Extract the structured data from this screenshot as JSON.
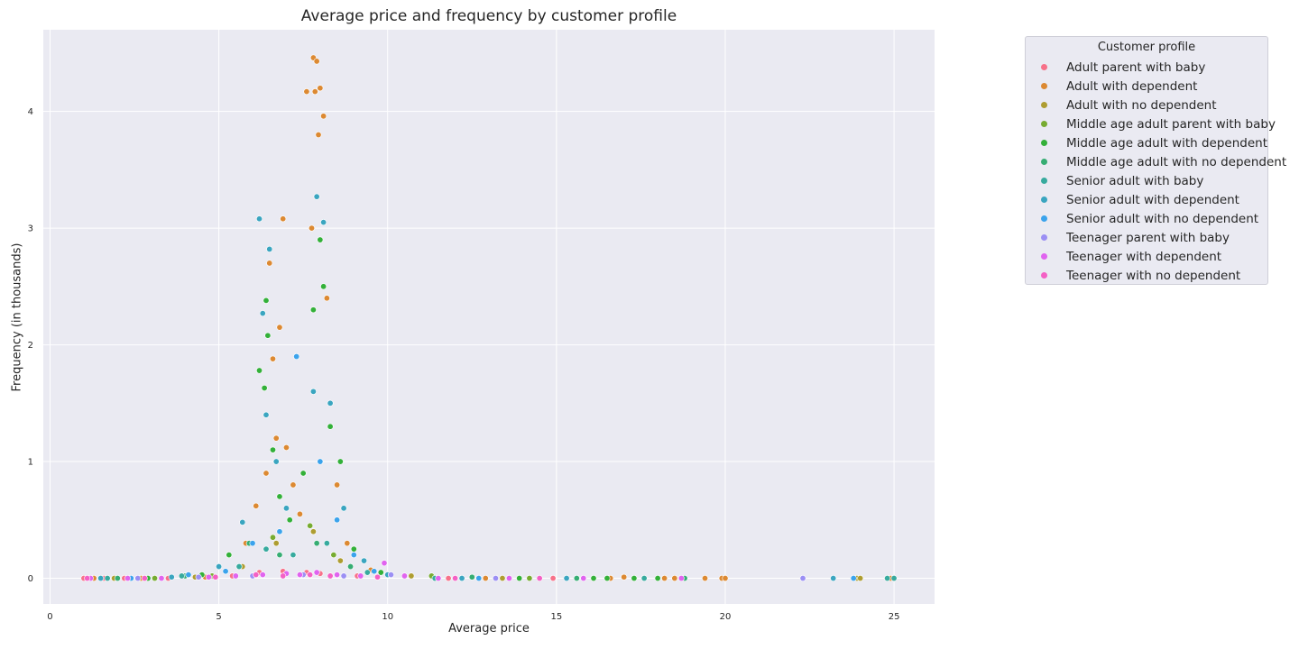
{
  "chart_data": {
    "type": "scatter",
    "title": "Average price and frequency by customer profile",
    "xlabel": "Average price",
    "ylabel": "Frequency (in thousands)",
    "xlim": [
      -0.2,
      26.2
    ],
    "ylim": [
      -0.22,
      4.7
    ],
    "xticks": [
      0,
      5,
      10,
      15,
      20,
      25
    ],
    "yticks": [
      0,
      1,
      2,
      3,
      4
    ],
    "grid": true,
    "background": "#eaeaf2",
    "legend": {
      "title": "Customer profile",
      "placement": "outside-right-top"
    },
    "series": [
      {
        "name": "Adult parent with baby",
        "color": "#f77189",
        "points": [
          [
            1.0,
            0
          ],
          [
            1.6,
            0
          ],
          [
            2.2,
            0
          ],
          [
            3.5,
            0
          ],
          [
            5.4,
            0.02
          ],
          [
            6.2,
            0.05
          ],
          [
            6.9,
            0.06
          ],
          [
            7.6,
            0.05
          ],
          [
            8.0,
            0.04
          ],
          [
            9.1,
            0.02
          ],
          [
            11.8,
            0
          ],
          [
            14.9,
            0
          ]
        ]
      },
      {
        "name": "Adult with dependent",
        "color": "#dc8932",
        "points": [
          [
            1.3,
            0
          ],
          [
            2.7,
            0
          ],
          [
            4.6,
            0.01
          ],
          [
            5.8,
            0.3
          ],
          [
            6.1,
            0.62
          ],
          [
            6.4,
            0.9
          ],
          [
            6.5,
            2.7
          ],
          [
            6.6,
            1.88
          ],
          [
            6.7,
            1.2
          ],
          [
            6.8,
            2.15
          ],
          [
            6.9,
            3.08
          ],
          [
            7.0,
            1.12
          ],
          [
            7.2,
            0.8
          ],
          [
            7.4,
            0.55
          ],
          [
            7.6,
            4.17
          ],
          [
            7.75,
            3.0
          ],
          [
            7.8,
            4.46
          ],
          [
            7.85,
            4.17
          ],
          [
            7.9,
            4.43
          ],
          [
            7.95,
            3.8
          ],
          [
            8.0,
            4.2
          ],
          [
            8.1,
            3.96
          ],
          [
            8.2,
            2.4
          ],
          [
            8.3,
            1.5
          ],
          [
            8.5,
            0.8
          ],
          [
            8.8,
            0.3
          ],
          [
            9.5,
            0.07
          ],
          [
            12.9,
            0
          ],
          [
            16.6,
            0
          ],
          [
            17.0,
            0.01
          ],
          [
            18.2,
            0
          ],
          [
            18.5,
            0
          ],
          [
            19.4,
            0
          ],
          [
            19.9,
            0
          ],
          [
            20.0,
            0
          ],
          [
            24.9,
            0
          ]
        ]
      },
      {
        "name": "Adult with no dependent",
        "color": "#ae9d31",
        "points": [
          [
            1.9,
            0
          ],
          [
            4.3,
            0.01
          ],
          [
            5.7,
            0.1
          ],
          [
            6.7,
            0.3
          ],
          [
            7.8,
            0.4
          ],
          [
            8.6,
            0.15
          ],
          [
            10.7,
            0.02
          ],
          [
            13.4,
            0
          ],
          [
            23.9,
            0
          ],
          [
            24.0,
            0
          ]
        ]
      },
      {
        "name": "Middle age adult parent with baby",
        "color": "#77ab31",
        "points": [
          [
            3.1,
            0
          ],
          [
            4.8,
            0.02
          ],
          [
            5.6,
            0.1
          ],
          [
            6.6,
            0.35
          ],
          [
            7.7,
            0.45
          ],
          [
            8.4,
            0.2
          ],
          [
            11.3,
            0.02
          ],
          [
            14.2,
            0
          ]
        ]
      },
      {
        "name": "Middle age adult with dependent",
        "color": "#33b039",
        "points": [
          [
            2.9,
            0
          ],
          [
            4.5,
            0.03
          ],
          [
            5.3,
            0.2
          ],
          [
            6.2,
            1.78
          ],
          [
            6.35,
            1.63
          ],
          [
            6.4,
            2.38
          ],
          [
            6.45,
            2.08
          ],
          [
            6.6,
            1.1
          ],
          [
            6.8,
            0.7
          ],
          [
            7.1,
            0.5
          ],
          [
            7.5,
            0.9
          ],
          [
            7.8,
            2.3
          ],
          [
            8.0,
            2.9
          ],
          [
            8.1,
            2.5
          ],
          [
            8.3,
            1.3
          ],
          [
            8.6,
            1.0
          ],
          [
            9.0,
            0.25
          ],
          [
            9.8,
            0.05
          ],
          [
            13.9,
            0
          ],
          [
            16.1,
            0
          ],
          [
            16.5,
            0
          ],
          [
            17.3,
            0
          ],
          [
            18.0,
            0
          ]
        ]
      },
      {
        "name": "Middle age adult with no dependent",
        "color": "#36ad73",
        "points": [
          [
            2.0,
            0
          ],
          [
            4.0,
            0.02
          ],
          [
            5.9,
            0.3
          ],
          [
            6.8,
            0.2
          ],
          [
            7.9,
            0.3
          ],
          [
            8.9,
            0.1
          ],
          [
            12.5,
            0.01
          ],
          [
            15.6,
            0
          ],
          [
            18.8,
            0
          ]
        ]
      },
      {
        "name": "Senior adult with baby",
        "color": "#37aa9e",
        "points": [
          [
            1.7,
            0
          ],
          [
            3.9,
            0.02
          ],
          [
            5.6,
            0.1
          ],
          [
            6.4,
            0.25
          ],
          [
            7.2,
            0.2
          ],
          [
            8.2,
            0.3
          ],
          [
            9.4,
            0.05
          ],
          [
            11.4,
            0
          ],
          [
            17.6,
            0
          ],
          [
            24.8,
            0
          ],
          [
            25.0,
            0
          ]
        ]
      },
      {
        "name": "Senior adult with dependent",
        "color": "#3aa5c0",
        "points": [
          [
            1.5,
            0
          ],
          [
            3.6,
            0.01
          ],
          [
            5.0,
            0.1
          ],
          [
            5.7,
            0.48
          ],
          [
            6.2,
            3.08
          ],
          [
            6.3,
            2.27
          ],
          [
            6.4,
            1.4
          ],
          [
            6.5,
            2.82
          ],
          [
            6.7,
            1.0
          ],
          [
            7.0,
            0.6
          ],
          [
            7.8,
            1.6
          ],
          [
            7.9,
            3.27
          ],
          [
            8.1,
            3.05
          ],
          [
            8.3,
            1.5
          ],
          [
            8.7,
            0.6
          ],
          [
            9.3,
            0.15
          ],
          [
            10.0,
            0.03
          ],
          [
            12.2,
            0
          ],
          [
            15.3,
            0
          ],
          [
            23.2,
            0
          ]
        ]
      },
      {
        "name": "Senior adult with no dependent",
        "color": "#3ba3ec",
        "points": [
          [
            2.4,
            0
          ],
          [
            4.1,
            0.03
          ],
          [
            5.2,
            0.06
          ],
          [
            6.0,
            0.3
          ],
          [
            6.8,
            0.4
          ],
          [
            7.3,
            1.9
          ],
          [
            8.0,
            1.0
          ],
          [
            8.5,
            0.5
          ],
          [
            9.0,
            0.2
          ],
          [
            9.6,
            0.06
          ],
          [
            12.7,
            0
          ],
          [
            23.8,
            0
          ]
        ]
      },
      {
        "name": "Teenager parent with baby",
        "color": "#9b8ff4",
        "points": [
          [
            2.6,
            0
          ],
          [
            4.4,
            0.01
          ],
          [
            6.0,
            0.02
          ],
          [
            7.5,
            0.03
          ],
          [
            8.7,
            0.02
          ],
          [
            10.1,
            0.03
          ],
          [
            13.2,
            0
          ],
          [
            22.3,
            0
          ]
        ]
      },
      {
        "name": "Teenager with dependent",
        "color": "#e064ef",
        "points": [
          [
            1.2,
            0
          ],
          [
            2.3,
            0
          ],
          [
            3.3,
            0
          ],
          [
            4.7,
            0.01
          ],
          [
            5.5,
            0.02
          ],
          [
            6.3,
            0.03
          ],
          [
            7.0,
            0.04
          ],
          [
            7.4,
            0.03
          ],
          [
            7.9,
            0.05
          ],
          [
            8.5,
            0.03
          ],
          [
            9.2,
            0.02
          ],
          [
            9.9,
            0.13
          ],
          [
            10.5,
            0.02
          ],
          [
            11.5,
            0
          ],
          [
            13.6,
            0
          ],
          [
            15.8,
            0
          ],
          [
            18.7,
            0
          ]
        ]
      },
      {
        "name": "Teenager with no dependent",
        "color": "#f461c5",
        "points": [
          [
            1.1,
            0
          ],
          [
            2.8,
            0
          ],
          [
            4.9,
            0.01
          ],
          [
            6.1,
            0.03
          ],
          [
            6.9,
            0.02
          ],
          [
            7.7,
            0.03
          ],
          [
            8.3,
            0.02
          ],
          [
            9.7,
            0.01
          ],
          [
            12.0,
            0
          ],
          [
            14.5,
            0
          ]
        ]
      }
    ]
  }
}
